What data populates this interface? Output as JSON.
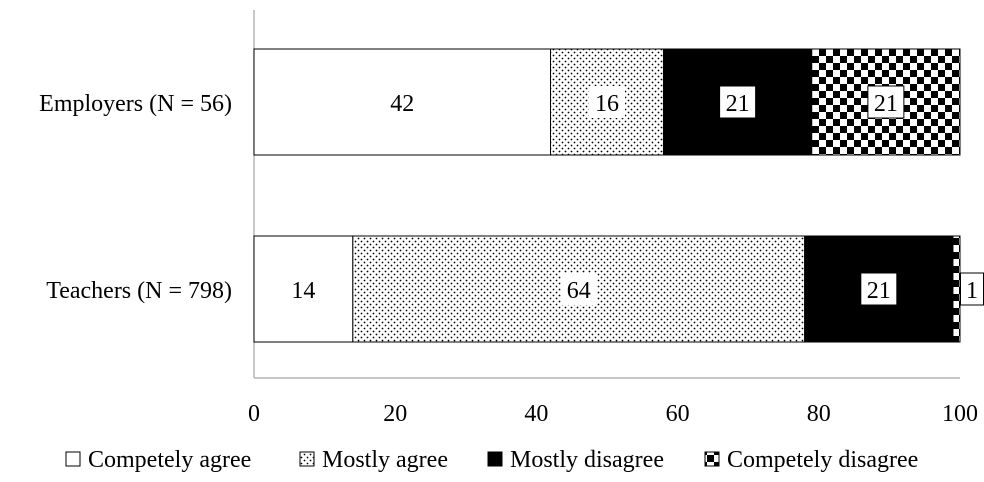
{
  "chart_data": {
    "type": "bar",
    "orientation": "horizontal",
    "stacked": true,
    "categories": [
      "Employers (N = 56)",
      "Teachers (N = 798)"
    ],
    "series": [
      {
        "name": "Competely agree",
        "values": [
          42,
          14
        ],
        "pattern": "plain",
        "color": "#ffffff"
      },
      {
        "name": "Mostly agree",
        "values": [
          16,
          64
        ],
        "pattern": "dots",
        "color": "#ffffff"
      },
      {
        "name": "Mostly disagree",
        "values": [
          21,
          21
        ],
        "pattern": "solid",
        "color": "#000000"
      },
      {
        "name": "Competely disagree",
        "values": [
          21,
          1
        ],
        "pattern": "checker",
        "color": "#000000"
      }
    ],
    "data_labels": [
      [
        "42",
        "16",
        "21",
        "21"
      ],
      [
        "14",
        "64",
        "21",
        "1"
      ]
    ],
    "x_ticks": [
      "0",
      "20",
      "40",
      "60",
      "80",
      "100"
    ],
    "xlim": [
      0,
      100
    ],
    "grid": false,
    "legend_position": "bottom",
    "title": "",
    "xlabel": "",
    "ylabel": ""
  }
}
